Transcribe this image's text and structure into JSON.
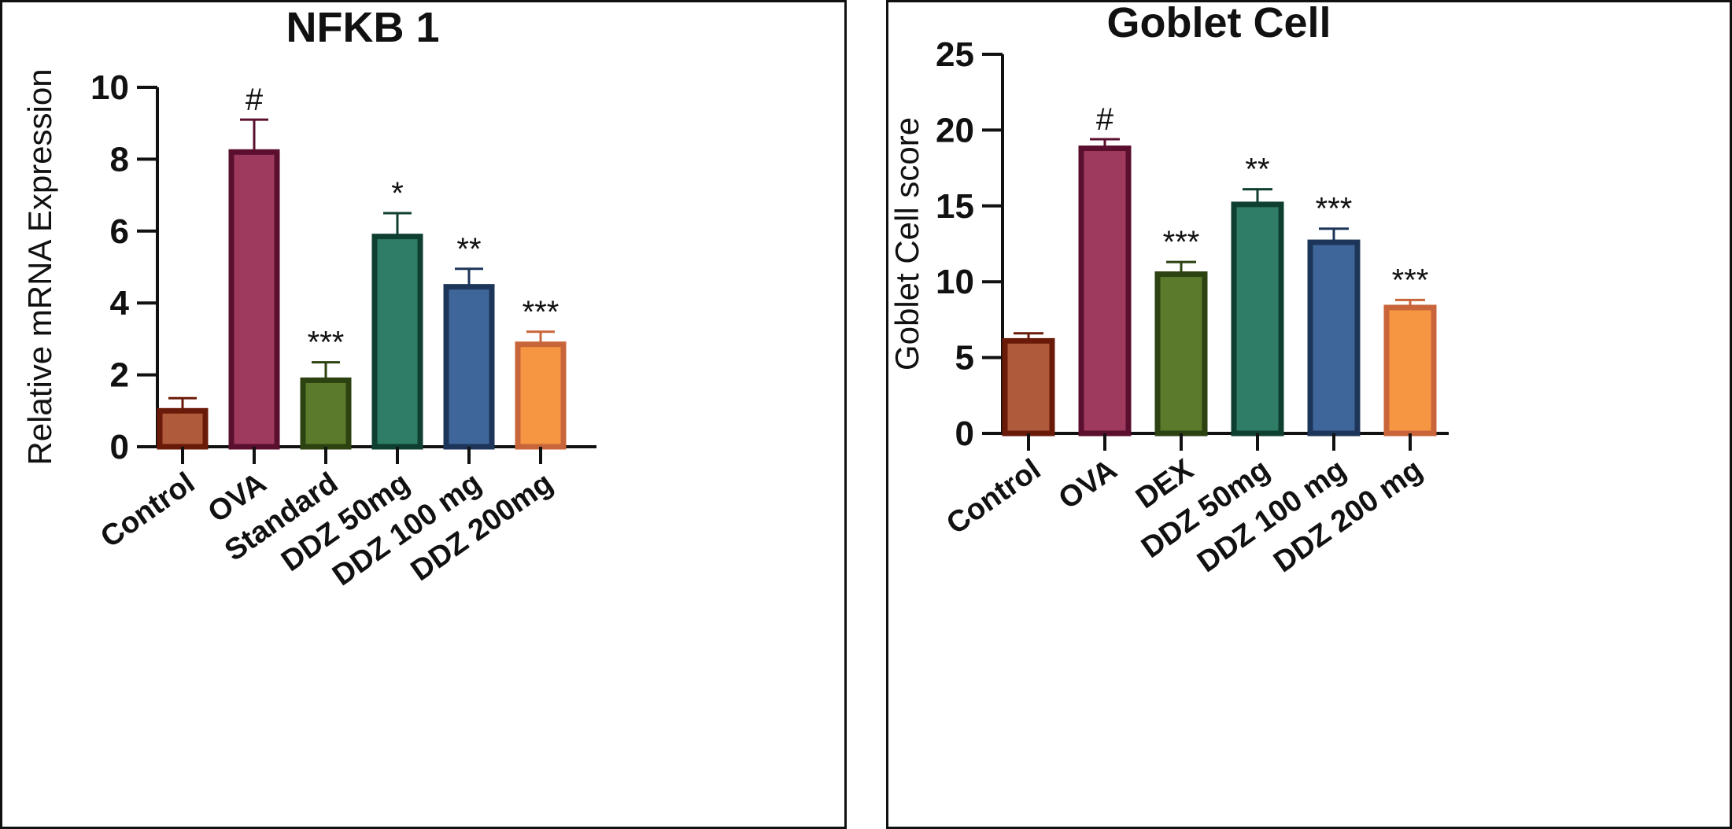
{
  "chart_data": [
    {
      "type": "bar",
      "title": "NFKB 1",
      "xlabel": "",
      "ylabel": "Relative mRNA Expression",
      "ylim": [
        0,
        10
      ],
      "yticks": [
        0,
        2,
        4,
        6,
        8,
        10
      ],
      "categories": [
        "Control",
        "OVA",
        "Standard",
        "DDZ 50mg",
        "DDZ 100 mg",
        "DDZ 200mg"
      ],
      "values": [
        1.0,
        8.2,
        1.85,
        5.85,
        4.45,
        2.85
      ],
      "errors": [
        0.35,
        0.9,
        0.5,
        0.65,
        0.5,
        0.35
      ],
      "annotations": [
        "",
        "#",
        "***",
        "*",
        "**",
        "***"
      ],
      "colors": [
        "#b05a3c",
        "#9e3a5e",
        "#5b7a2b",
        "#2f7d66",
        "#3f669a",
        "#f79642"
      ],
      "edge_colors": [
        "#6a1a08",
        "#5a0f2e",
        "#2c4210",
        "#0f3f31",
        "#1c3558",
        "#c9653a"
      ]
    },
    {
      "type": "bar",
      "title": "Goblet Cell",
      "xlabel": "",
      "ylabel": "Goblet Cell score",
      "ylim": [
        0,
        25
      ],
      "yticks": [
        0,
        5,
        10,
        15,
        20,
        25
      ],
      "categories": [
        "Control",
        "OVA",
        "DEX",
        "DDZ 50mg",
        "DDZ 100 mg",
        "DDZ 200 mg"
      ],
      "values": [
        6.1,
        18.8,
        10.5,
        15.1,
        12.6,
        8.3
      ],
      "errors": [
        0.5,
        0.6,
        0.8,
        1.0,
        0.9,
        0.5
      ],
      "annotations": [
        "",
        "#",
        "***",
        "**",
        "***",
        "***"
      ],
      "colors": [
        "#b05a3c",
        "#9e3a5e",
        "#5b7a2b",
        "#2f7d66",
        "#3f669a",
        "#f79642"
      ],
      "edge_colors": [
        "#6a1a08",
        "#5a0f2e",
        "#2c4210",
        "#0f3f31",
        "#1c3558",
        "#c9653a"
      ]
    }
  ]
}
